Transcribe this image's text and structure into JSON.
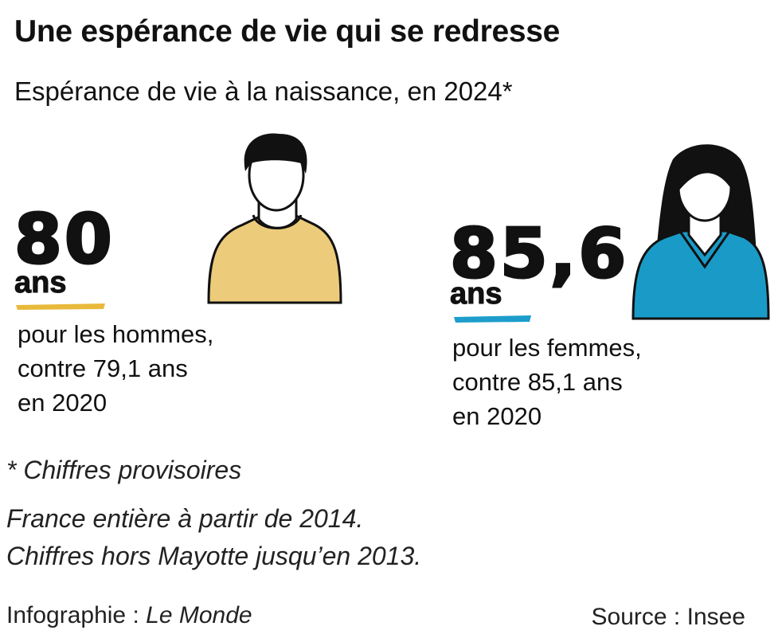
{
  "header": {
    "title": "Une espérance de vie qui se redresse",
    "subtitle": "Espérance de vie à la naissance, en 2024*"
  },
  "panels": [
    {
      "value": "80",
      "unit": "ans",
      "lines": [
        "pour les hommes,",
        "contre 79,1 ans",
        "en 2020"
      ]
    },
    {
      "value": "85,6",
      "unit": "ans",
      "lines": [
        "pour les femmes,",
        "contre 85,1 ans",
        "en 2020"
      ]
    }
  ],
  "footnote": "* Chiffres provisoires",
  "notes": [
    "France entière à partir de 2014.",
    "Chiffres hors Mayotte jusqu’en 2013."
  ],
  "credit": {
    "label": "Infographie :",
    "outlet": "Le Monde"
  },
  "source": "Source : Insee"
}
